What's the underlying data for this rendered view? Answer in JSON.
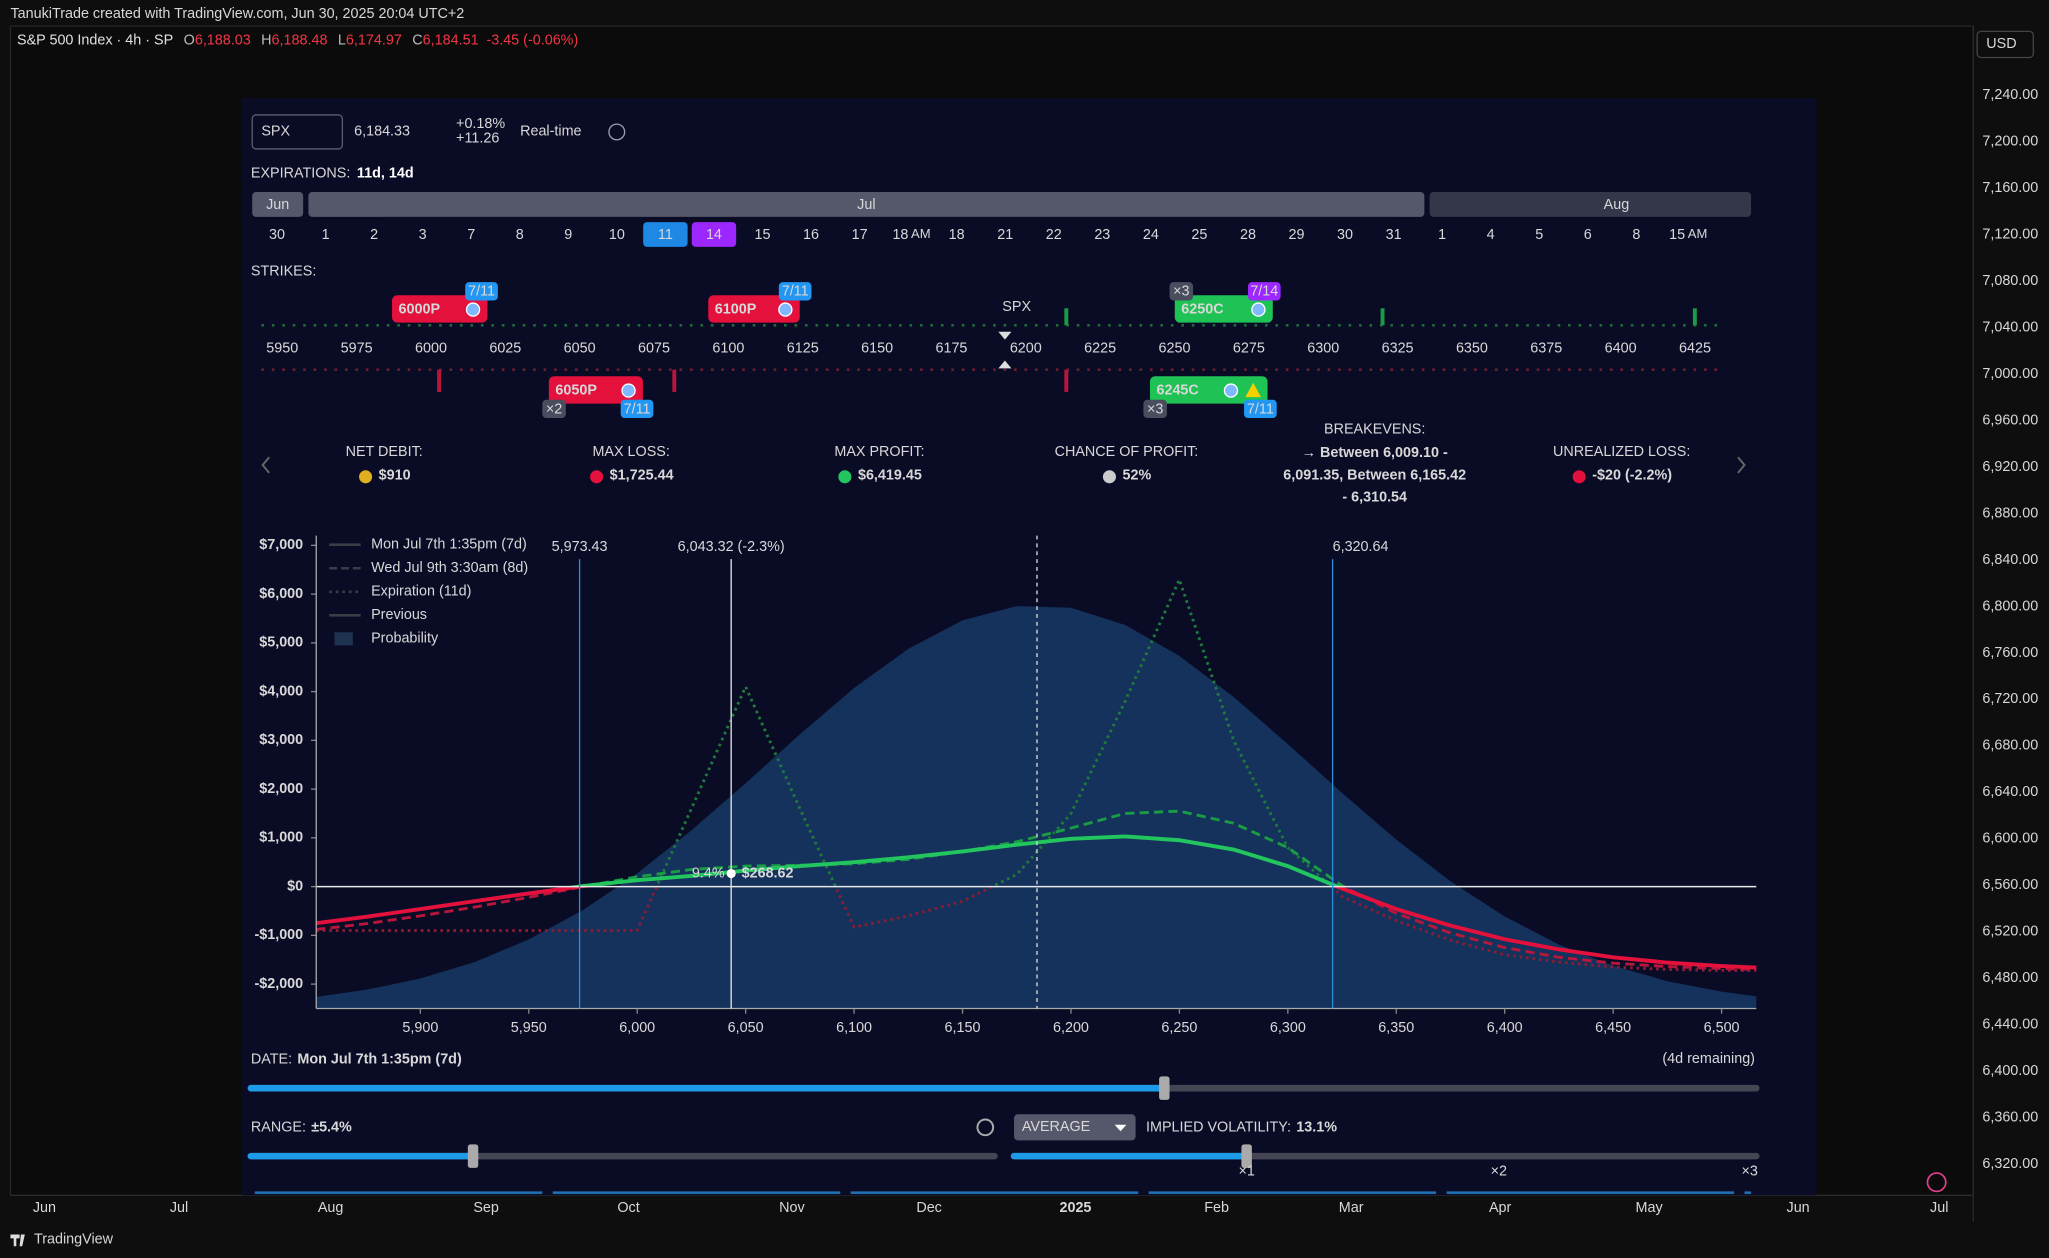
{
  "header": {
    "credit": "TanukiTrade created with TradingView.com, Jun 30, 2025 20:04 UTC+2"
  },
  "symbol": {
    "name": "S&P 500 Index · 4h · SP",
    "ohlc": [
      {
        "label": "O",
        "value": "6,188.03"
      },
      {
        "label": "H",
        "value": "6,188.48"
      },
      {
        "label": "L",
        "value": "6,174.97"
      },
      {
        "label": "C",
        "value": "6,184.51"
      }
    ],
    "change": "-3.45 (-0.06%)"
  },
  "price_axis": {
    "currency": "USD",
    "labels": [
      "7,240.00",
      "7,200.00",
      "7,160.00",
      "7,120.00",
      "7,080.00",
      "7,040.00",
      "7,000.00",
      "6,960.00",
      "6,920.00",
      "6,880.00",
      "6,840.00",
      "6,800.00",
      "6,760.00",
      "6,720.00",
      "6,680.00",
      "6,640.00",
      "6,600.00",
      "6,560.00",
      "6,520.00",
      "6,480.00",
      "6,440.00",
      "6,400.00",
      "6,360.00",
      "6,320.00"
    ]
  },
  "time_axis": [
    "Jun",
    "Jul",
    "Aug",
    "Sep",
    "Oct",
    "Nov",
    "Dec",
    "2025",
    "Feb",
    "Mar",
    "Apr",
    "May",
    "Jun",
    "Jul"
  ],
  "footer": {
    "brand": "TradingView"
  },
  "panel": {
    "ticker": "SPX",
    "price": "6,184.33",
    "change_pct": "+0.18%",
    "change_abs": "+11.26",
    "realtime": "Real-time",
    "expirations": {
      "label": "EXPIRATIONS:",
      "value": "11d, 14d"
    },
    "months": [
      "Jun",
      "Jul",
      "Aug"
    ],
    "days": [
      "30",
      "1",
      "2",
      "3",
      "7",
      "8",
      "9",
      "10",
      "11",
      "14",
      "15",
      "16",
      "17",
      {
        "label": "18",
        "suffix": "AM"
      },
      "18",
      "21",
      "22",
      "23",
      "24",
      "25",
      "28",
      "29",
      "30",
      "31",
      "1",
      "4",
      "5",
      "6",
      "8",
      {
        "label": "15",
        "suffix": "AM"
      }
    ],
    "selected_days": [
      {
        "index": 8,
        "color": "#1e88e5"
      },
      {
        "index": 9,
        "color": "#9c27ff"
      }
    ],
    "strikes_label": "STRIKES:",
    "strike_ticks": [
      "5950",
      "5975",
      "6000",
      "6025",
      "6050",
      "6075",
      "6100",
      "6125",
      "6150",
      "6175",
      "6200",
      "6225",
      "6250",
      "6275",
      "6300",
      "6325",
      "6350",
      "6375",
      "6400",
      "6425"
    ],
    "spot_label": "SPX",
    "legs": [
      {
        "label": "6000P",
        "date": "7/11",
        "color": "#e3113c",
        "date_color": "#2196f3"
      },
      {
        "label": "6100P",
        "date": "7/11",
        "color": "#e3113c",
        "date_color": "#2196f3"
      },
      {
        "label": "6250C",
        "date": "7/14",
        "qty": "×3",
        "color": "#1fc254",
        "date_color": "#9c27ff"
      },
      {
        "label": "6050P",
        "date": "7/11",
        "qty": "×2",
        "color": "#e3113c",
        "date_color": "#2196f3"
      },
      {
        "label": "6245C",
        "date": "7/11",
        "qty": "×3",
        "color": "#1fc254",
        "date_color": "#2196f3"
      }
    ],
    "stats": [
      {
        "label": "NET DEBIT:",
        "value": "$910"
      },
      {
        "label": "MAX LOSS:",
        "value": "$1,725.44"
      },
      {
        "label": "MAX PROFIT:",
        "value": "$6,419.45"
      },
      {
        "label": "CHANCE OF PROFIT:",
        "value": "52%"
      },
      {
        "label": "BREAKEVENS:",
        "value": [
          "→ Between 6,009.10 -",
          "6,091.35, Between 6,165.42",
          "- 6,310.54"
        ]
      },
      {
        "label": "UNREALIZED LOSS:",
        "value": "-$20 (-2.2%)"
      }
    ],
    "date": {
      "label": "DATE:",
      "value": "Mon Jul 7th 1:35pm (7d)",
      "remaining": "(4d remaining)"
    },
    "range": {
      "label": "RANGE:",
      "value": "±5.4%"
    },
    "iv": {
      "mode": "AVERAGE",
      "label": "IMPLIED VOLATILITY:",
      "value": "13.1%",
      "marks": [
        "×1",
        "×2",
        "×3"
      ]
    }
  },
  "chart_data": {
    "type": "line",
    "xlim": [
      5852,
      6516
    ],
    "ylim": [
      -2500,
      7200
    ],
    "xticks": [
      {
        "value": 5900,
        "label": "5,900"
      },
      {
        "value": 5950,
        "label": "5,950"
      },
      {
        "value": 6000,
        "label": "6,000"
      },
      {
        "value": 6050,
        "label": "6,050"
      },
      {
        "value": 6100,
        "label": "6,100"
      },
      {
        "value": 6150,
        "label": "6,150"
      },
      {
        "value": 6200,
        "label": "6,200"
      },
      {
        "value": 6250,
        "label": "6,250"
      },
      {
        "value": 6300,
        "label": "6,300"
      },
      {
        "value": 6350,
        "label": "6,350"
      },
      {
        "value": 6400,
        "label": "6,400"
      },
      {
        "value": 6450,
        "label": "6,450"
      },
      {
        "value": 6500,
        "label": "6,500"
      }
    ],
    "yticks": [
      {
        "value": 7000,
        "label": "$7,000"
      },
      {
        "value": 6000,
        "label": "$6,000"
      },
      {
        "value": 5000,
        "label": "$5,000"
      },
      {
        "value": 4000,
        "label": "$4,000"
      },
      {
        "value": 3000,
        "label": "$3,000"
      },
      {
        "value": 2000,
        "label": "$2,000"
      },
      {
        "value": 1000,
        "label": "$1,000"
      },
      {
        "value": 0,
        "label": "$0"
      },
      {
        "value": -1000,
        "label": "-$1,000"
      },
      {
        "value": -2000,
        "label": "-$2,000"
      }
    ],
    "x": [
      5852,
      5875,
      5900,
      5925,
      5950,
      5975,
      6000,
      6025,
      6050,
      6075,
      6100,
      6125,
      6150,
      6175,
      6200,
      6225,
      6250,
      6275,
      6300,
      6325,
      6350,
      6375,
      6400,
      6425,
      6450,
      6475,
      6500,
      6516
    ],
    "series": [
      {
        "name": "Probability",
        "style": "area",
        "color": "#163a66",
        "values": [
          -2262,
          -2117,
          -1885,
          -1548,
          -1086,
          -481,
          270,
          1151,
          2120,
          3122,
          4074,
          4878,
          5462,
          5754,
          5720,
          5366,
          4733,
          3890,
          2923,
          1922,
          965,
          108,
          -614,
          -1189,
          -1625,
          -1939,
          -2154,
          -2252
        ]
      },
      {
        "name": "Expiration (11d)",
        "style": "dotted",
        "color": "#1f7a3c",
        "negative_color": "#8a1c34",
        "values": [
          -900,
          -900,
          -900,
          -900,
          -900,
          -900,
          -900,
          1600,
          4100,
          1600,
          -830,
          -600,
          -300,
          250,
          1500,
          3800,
          6300,
          3000,
          800,
          -200,
          -700,
          -1100,
          -1400,
          -1550,
          -1650,
          -1700,
          -1720,
          -1720
        ]
      },
      {
        "name": "Wed Jul 9th 3:30am (8d)",
        "style": "dashed",
        "color": "#1a9c45",
        "negative_color": "#b8163a",
        "values": [
          -880,
          -760,
          -600,
          -420,
          -220,
          0,
          200,
          350,
          420,
          440,
          470,
          560,
          720,
          920,
          1200,
          1500,
          1550,
          1300,
          800,
          20,
          -550,
          -950,
          -1250,
          -1450,
          -1570,
          -1640,
          -1680,
          -1700
        ]
      },
      {
        "name": "Mon Jul 7th 1:35pm (7d)",
        "style": "solid",
        "color": "#22c55e",
        "negative_color": "#e3113c",
        "values": [
          -750,
          -620,
          -460,
          -300,
          -140,
          10,
          130,
          220,
          330,
          420,
          500,
          600,
          720,
          860,
          980,
          1030,
          950,
          760,
          420,
          -40,
          -460,
          -800,
          -1080,
          -1290,
          -1450,
          -1560,
          -1630,
          -1660
        ]
      }
    ],
    "legend": [
      "Mon Jul 7th 1:35pm (7d)",
      "Wed Jul 9th 3:30am (8d)",
      "Expiration (11d)",
      "Previous",
      "Probability"
    ],
    "vlines": [
      {
        "x": 5973.43,
        "label": "5,973.43",
        "color": "#2b8fd6"
      },
      {
        "x": 6043.32,
        "label": "6,043.32 (-2.3%)",
        "color": "#e8e8e8"
      },
      {
        "x": 6320.64,
        "label": "6,320.64",
        "color": "#2b8fd6"
      }
    ],
    "spot": 6184.33,
    "cursor": {
      "x": 6043.32,
      "value": 268.62,
      "label": "$268.62",
      "pct": "9.4%"
    }
  }
}
